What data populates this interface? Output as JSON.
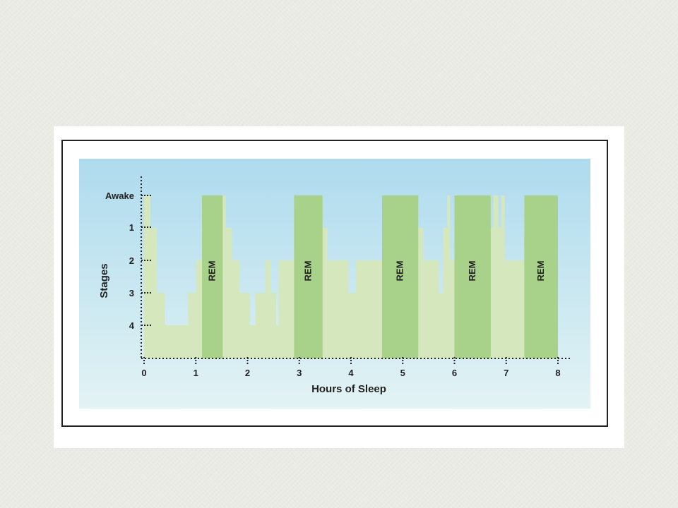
{
  "colors": {
    "background_gradient_top": "#aedbee",
    "background_gradient_bottom": "#e3f3f4",
    "stage_fill": "#d4e7bd",
    "rem_fill": "#a8d289",
    "axis": "#222222"
  },
  "chart_data": {
    "type": "area",
    "title": "",
    "xlabel": "Hours of Sleep",
    "ylabel": "Stages",
    "x_ticks": [
      "0",
      "1",
      "2",
      "3",
      "4",
      "5",
      "6",
      "7",
      "8"
    ],
    "y_ticks": [
      "Awake",
      "1",
      "2",
      "3",
      "4"
    ],
    "xlim": [
      0,
      8
    ],
    "grid": false,
    "series": [
      {
        "points": [
          [
            0,
            0
          ],
          [
            0.12,
            0
          ],
          [
            0.12,
            1
          ],
          [
            0.25,
            1
          ],
          [
            0.25,
            3
          ],
          [
            0.4,
            3
          ],
          [
            0.4,
            4
          ],
          [
            0.85,
            4
          ],
          [
            0.85,
            3
          ],
          [
            1.0,
            3
          ],
          [
            1.0,
            2
          ],
          [
            1.18,
            2
          ],
          [
            1.18,
            0
          ],
          [
            1.58,
            0
          ],
          [
            1.58,
            1
          ],
          [
            1.7,
            1
          ],
          [
            1.7,
            2
          ],
          [
            1.85,
            2
          ],
          [
            1.85,
            3
          ],
          [
            2.05,
            3
          ],
          [
            2.05,
            4
          ],
          [
            2.15,
            4
          ],
          [
            2.15,
            3
          ],
          [
            2.35,
            3
          ],
          [
            2.35,
            2
          ],
          [
            2.45,
            2
          ],
          [
            2.45,
            3
          ],
          [
            2.55,
            3
          ],
          [
            2.55,
            4
          ],
          [
            2.6,
            4
          ],
          [
            2.6,
            2
          ],
          [
            2.9,
            2
          ],
          [
            2.9,
            0
          ],
          [
            3.45,
            0
          ],
          [
            3.45,
            1
          ],
          [
            3.55,
            1
          ],
          [
            3.55,
            2
          ],
          [
            3.95,
            2
          ],
          [
            3.95,
            3
          ],
          [
            4.1,
            3
          ],
          [
            4.1,
            2
          ],
          [
            4.6,
            2
          ],
          [
            4.6,
            0
          ],
          [
            5.3,
            0
          ],
          [
            5.3,
            1
          ],
          [
            5.4,
            1
          ],
          [
            5.4,
            2
          ],
          [
            5.7,
            2
          ],
          [
            5.7,
            3
          ],
          [
            5.78,
            3
          ],
          [
            5.78,
            1
          ],
          [
            5.86,
            1
          ],
          [
            5.86,
            0
          ],
          [
            5.92,
            0
          ],
          [
            5.92,
            2
          ],
          [
            6.0,
            2
          ],
          [
            6.0,
            0
          ],
          [
            6.7,
            0
          ],
          [
            6.7,
            1
          ],
          [
            6.75,
            1
          ],
          [
            6.75,
            0
          ],
          [
            6.85,
            0
          ],
          [
            6.85,
            1
          ],
          [
            6.9,
            1
          ],
          [
            6.9,
            0
          ],
          [
            6.97,
            0
          ],
          [
            6.97,
            2
          ],
          [
            7.35,
            2
          ],
          [
            7.35,
            0
          ],
          [
            8.0,
            0
          ]
        ]
      }
    ],
    "rem_periods": [
      {
        "label": "REM",
        "start": 1.12,
        "end": 1.52
      },
      {
        "label": "REM",
        "start": 2.9,
        "end": 3.45
      },
      {
        "label": "REM",
        "start": 4.6,
        "end": 5.3
      },
      {
        "label": "REM",
        "start": 6.0,
        "end": 6.7
      },
      {
        "label": "REM",
        "start": 7.35,
        "end": 8.0
      }
    ]
  }
}
